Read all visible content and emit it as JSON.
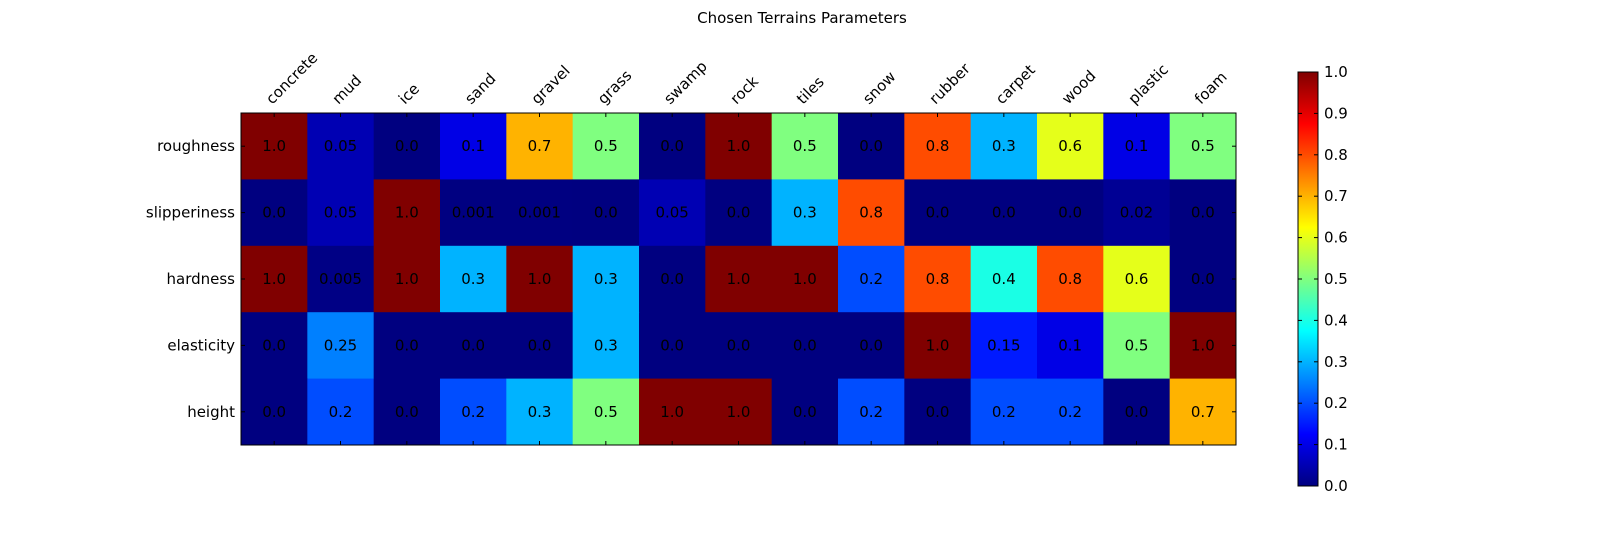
{
  "chart_data": {
    "type": "heatmap",
    "title": "Chosen Terrains Parameters",
    "x_categories": [
      "concrete",
      "mud",
      "ice",
      "sand",
      "gravel",
      "grass",
      "swamp",
      "rock",
      "tiles",
      "snow",
      "rubber",
      "carpet",
      "wood",
      "plastic",
      "foam"
    ],
    "y_categories": [
      "roughness",
      "slipperiness",
      "hardness",
      "elasticity",
      "height"
    ],
    "values": [
      [
        1.0,
        0.05,
        0.0,
        0.1,
        0.7,
        0.5,
        0.0,
        1.0,
        0.5,
        0.0,
        0.8,
        0.3,
        0.6,
        0.1,
        0.5
      ],
      [
        0.0,
        0.05,
        1.0,
        0.001,
        0.001,
        0.0,
        0.05,
        0.0,
        0.3,
        0.8,
        0.0,
        0.0,
        0.0,
        0.02,
        0.0
      ],
      [
        1.0,
        0.005,
        1.0,
        0.3,
        1.0,
        0.3,
        0.0,
        1.0,
        1.0,
        0.2,
        0.8,
        0.4,
        0.8,
        0.6,
        0.0
      ],
      [
        0.0,
        0.25,
        0.0,
        0.0,
        0.0,
        0.3,
        0.0,
        0.0,
        0.0,
        0.0,
        1.0,
        0.15,
        0.1,
        0.5,
        1.0
      ],
      [
        0.0,
        0.2,
        0.0,
        0.2,
        0.3,
        0.5,
        1.0,
        1.0,
        0.0,
        0.2,
        0.0,
        0.2,
        0.2,
        0.0,
        0.7
      ]
    ],
    "cell_labels": [
      [
        "1.0",
        "0.05",
        "0.0",
        "0.1",
        "0.7",
        "0.5",
        "0.0",
        "1.0",
        "0.5",
        "0.0",
        "0.8",
        "0.3",
        "0.6",
        "0.1",
        "0.5"
      ],
      [
        "0.0",
        "0.05",
        "1.0",
        "0.001",
        "0.001",
        "0.0",
        "0.05",
        "0.0",
        "0.3",
        "0.8",
        "0.0",
        "0.0",
        "0.0",
        "0.02",
        "0.0"
      ],
      [
        "1.0",
        "0.005",
        "1.0",
        "0.3",
        "1.0",
        "0.3",
        "0.0",
        "1.0",
        "1.0",
        "0.2",
        "0.8",
        "0.4",
        "0.8",
        "0.6",
        "0.0"
      ],
      [
        "0.0",
        "0.25",
        "0.0",
        "0.0",
        "0.0",
        "0.3",
        "0.0",
        "0.0",
        "0.0",
        "0.0",
        "1.0",
        "0.15",
        "0.1",
        "0.5",
        "1.0"
      ],
      [
        "0.0",
        "0.2",
        "0.0",
        "0.2",
        "0.3",
        "0.5",
        "1.0",
        "1.0",
        "0.0",
        "0.2",
        "0.0",
        "0.2",
        "0.2",
        "0.0",
        "0.7"
      ]
    ],
    "colormap": "jet",
    "clim": [
      0.0,
      1.0
    ],
    "colorbar_ticks": [
      "0.0",
      "0.1",
      "0.2",
      "0.3",
      "0.4",
      "0.5",
      "0.6",
      "0.7",
      "0.8",
      "0.9",
      "1.0"
    ],
    "colorbar_tick_values": [
      0.0,
      0.1,
      0.2,
      0.3,
      0.4,
      0.5,
      0.6,
      0.7,
      0.8,
      0.9,
      1.0
    ],
    "x_ticks_position": "top",
    "colorbar_position": "right",
    "grid": false
  }
}
